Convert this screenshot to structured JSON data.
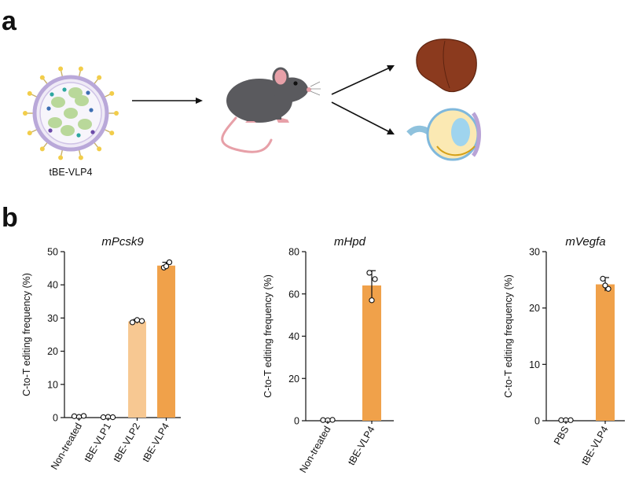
{
  "panel_a": {
    "letter": "a",
    "vlp_label": "tBE-VLP4"
  },
  "panel_b": {
    "letter": "b"
  },
  "colors": {
    "orange": "#F0A14A",
    "light_orange": "#F7C892",
    "axis": "#111111"
  },
  "chart_data": [
    {
      "type": "bar",
      "title": "mPcsk9",
      "ylabel": "C-to-T editing frequency (%)",
      "xlabel": "",
      "categories": [
        "Non-treated",
        "tBE-VLP1",
        "tBE-VLP2",
        "tBE-VLP4"
      ],
      "values": [
        0.3,
        0.2,
        29.0,
        45.8
      ],
      "error": [
        0.3,
        0.2,
        0.6,
        1.0
      ],
      "points": [
        [
          0.4,
          0.2,
          0.5
        ],
        [
          0.1,
          0.2,
          0.1
        ],
        [
          28.7,
          29.4,
          29.1
        ],
        [
          45.2,
          46.8,
          45.6
        ]
      ],
      "bar_colors": [
        "#F0A14A",
        "#F0A14A",
        "#F7C892",
        "#F0A14A"
      ],
      "ylim": [
        0,
        50
      ],
      "yticks": [
        "0",
        "10",
        "20",
        "30",
        "40",
        "50"
      ],
      "grid": false
    },
    {
      "type": "bar",
      "title": "mHpd",
      "ylabel": "C-to-T editing frequency (%)",
      "xlabel": "",
      "categories": [
        "Non-treated",
        "tBE-VLP4"
      ],
      "values": [
        0.3,
        64.0
      ],
      "error": [
        0.3,
        7.0
      ],
      "points": [
        [
          0.3,
          0.2,
          0.4
        ],
        [
          70.0,
          67.0,
          57.0
        ]
      ],
      "bar_colors": [
        "#F0A14A",
        "#F0A14A"
      ],
      "ylim": [
        0,
        80
      ],
      "yticks": [
        "0",
        "20",
        "40",
        "60",
        "80"
      ],
      "grid": false
    },
    {
      "type": "bar",
      "title": "mVegfa",
      "ylabel": "C-to-T editing frequency (%)",
      "xlabel": "",
      "categories": [
        "PBS",
        "tBE-VLP4"
      ],
      "values": [
        0.1,
        24.2
      ],
      "error": [
        0.1,
        1.2
      ],
      "points": [
        [
          0.1,
          0.1,
          0.1
        ],
        [
          25.2,
          23.4,
          24.0
        ]
      ],
      "bar_colors": [
        "#F0A14A",
        "#F0A14A"
      ],
      "ylim": [
        0,
        30
      ],
      "yticks": [
        "0",
        "10",
        "20",
        "30"
      ],
      "grid": false
    }
  ]
}
